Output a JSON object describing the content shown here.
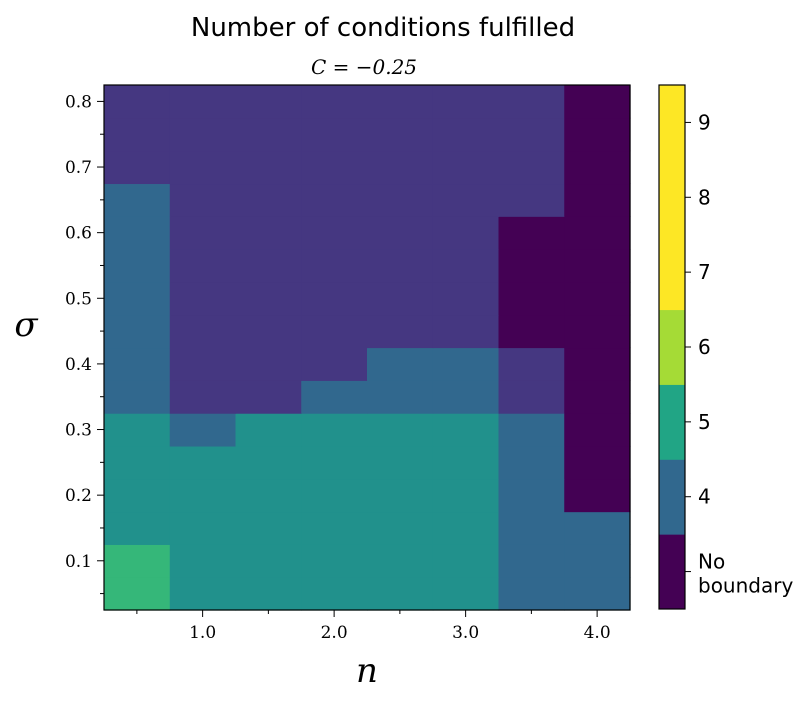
{
  "chart_data": {
    "type": "heatmap",
    "title": "Number of conditions fulfilled",
    "subtitle": "C = −0.25",
    "xlabel": "n",
    "ylabel": "σ",
    "xlim": [
      0.25,
      4.25
    ],
    "ylim": [
      0.025,
      0.825
    ],
    "x_ticks": [
      "1.0",
      "2.0",
      "3.0",
      "4.0"
    ],
    "y_ticks": [
      "0.1",
      "0.2",
      "0.3",
      "0.4",
      "0.5",
      "0.6",
      "0.7",
      "0.8"
    ],
    "x": [
      0.5,
      1.0,
      1.5,
      2.0,
      2.5,
      3.0,
      3.5,
      4.0
    ],
    "y": [
      0.05,
      0.1,
      0.15,
      0.2,
      0.25,
      0.3,
      0.35,
      0.4,
      0.45,
      0.5,
      0.55,
      0.6,
      0.65,
      0.7,
      0.75,
      0.8
    ],
    "z": [
      [
        5.5,
        5,
        5,
        5,
        5,
        5,
        4,
        4
      ],
      [
        5.5,
        5,
        5,
        5,
        5,
        5,
        4,
        4
      ],
      [
        5,
        5,
        5,
        5,
        5,
        5,
        4,
        4
      ],
      [
        5,
        5,
        5,
        5,
        5,
        5,
        4,
        3
      ],
      [
        5,
        5,
        5,
        5,
        5,
        5,
        4,
        3
      ],
      [
        5,
        4,
        5,
        5,
        5,
        5,
        4,
        3
      ],
      [
        4,
        3.7,
        3.7,
        4,
        4,
        4,
        3.7,
        3
      ],
      [
        4,
        3.7,
        3.7,
        3.7,
        4,
        4,
        3.7,
        3
      ],
      [
        4,
        3.7,
        3.7,
        3.7,
        3.7,
        3.7,
        3,
        3
      ],
      [
        4,
        3.7,
        3.7,
        3.7,
        3.7,
        3.7,
        3,
        3
      ],
      [
        4,
        3.7,
        3.7,
        3.7,
        3.7,
        3.7,
        3,
        3
      ],
      [
        4,
        3.7,
        3.7,
        3.7,
        3.7,
        3.7,
        3,
        3
      ],
      [
        4,
        3.7,
        3.7,
        3.7,
        3.7,
        3.7,
        3.7,
        3
      ],
      [
        3.7,
        3.7,
        3.7,
        3.7,
        3.7,
        3.7,
        3.7,
        3
      ],
      [
        3.7,
        3.7,
        3.7,
        3.7,
        3.7,
        3.7,
        3.7,
        3
      ],
      [
        3.7,
        3.7,
        3.7,
        3.7,
        3.7,
        3.7,
        3.7,
        3
      ]
    ],
    "colorbar": {
      "range": [
        3,
        10
      ],
      "segments": [
        {
          "from": 3,
          "to": 4,
          "color": "#440154"
        },
        {
          "from": 4,
          "to": 5,
          "color": "#31688e"
        },
        {
          "from": 5,
          "to": 6,
          "color": "#21a585"
        },
        {
          "from": 6,
          "to": 7,
          "color": "#a5db36"
        },
        {
          "from": 7,
          "to": 10,
          "color": "#fde725"
        }
      ],
      "ticks": [
        {
          "value": 3.5,
          "label": "No\nboundary"
        },
        {
          "value": 4.5,
          "label": "4"
        },
        {
          "value": 5.5,
          "label": "5"
        },
        {
          "value": 6.5,
          "label": "6"
        },
        {
          "value": 7.5,
          "label": "7"
        },
        {
          "value": 8.5,
          "label": "8"
        },
        {
          "value": 9.5,
          "label": "9"
        }
      ]
    },
    "cell_colors": {
      "3": "#440154",
      "3.7": "#453781",
      "4": "#31688e",
      "5": "#21918c",
      "5.5": "#35b779"
    },
    "grid": false
  }
}
